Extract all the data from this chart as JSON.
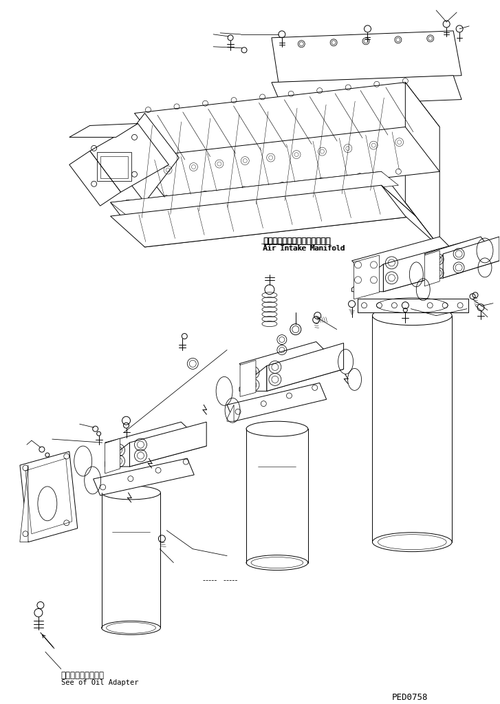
{
  "background_color": "#ffffff",
  "line_color": "#000000",
  "text_color": "#000000",
  "annotation_japanese_1": "エアーインテークマニホールド",
  "annotation_english_1": "Air Intake Manifold",
  "annotation_japanese_2": "オイルアダプタ参照",
  "annotation_english_2": "See of Oil Adapter",
  "part_number": "PED0758",
  "figsize": [
    7.27,
    10.23
  ],
  "dpi": 100
}
